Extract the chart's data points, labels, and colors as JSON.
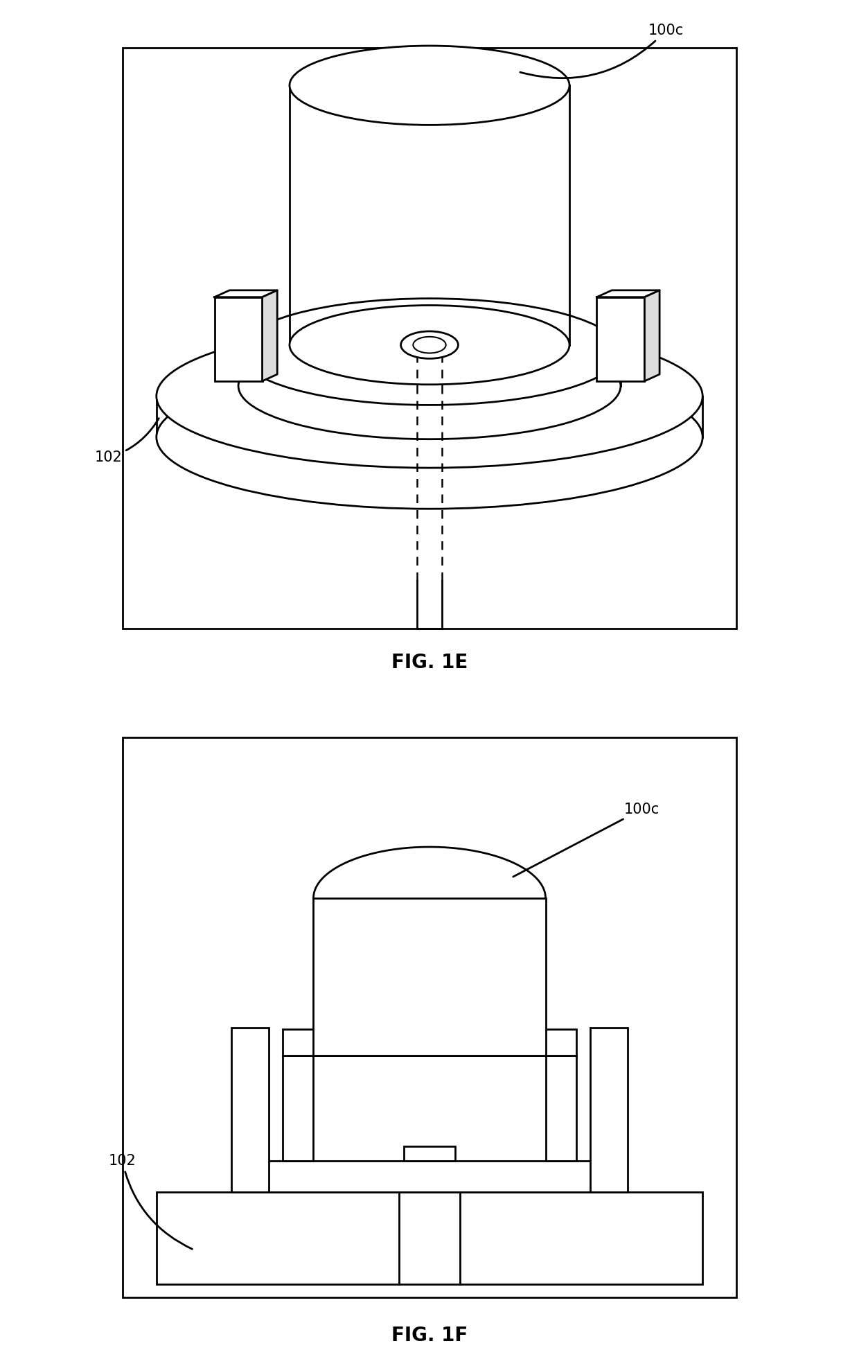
{
  "fig_width": 12.4,
  "fig_height": 19.71,
  "dpi": 100,
  "bg_color": "#ffffff",
  "line_color": "#000000",
  "line_width": 2.0,
  "fig1e_label": "FIG. 1E",
  "fig1f_label": "FIG. 1F",
  "label_100c": "100c",
  "label_102": "102",
  "font_size_fig": 20,
  "font_size_label": 15
}
